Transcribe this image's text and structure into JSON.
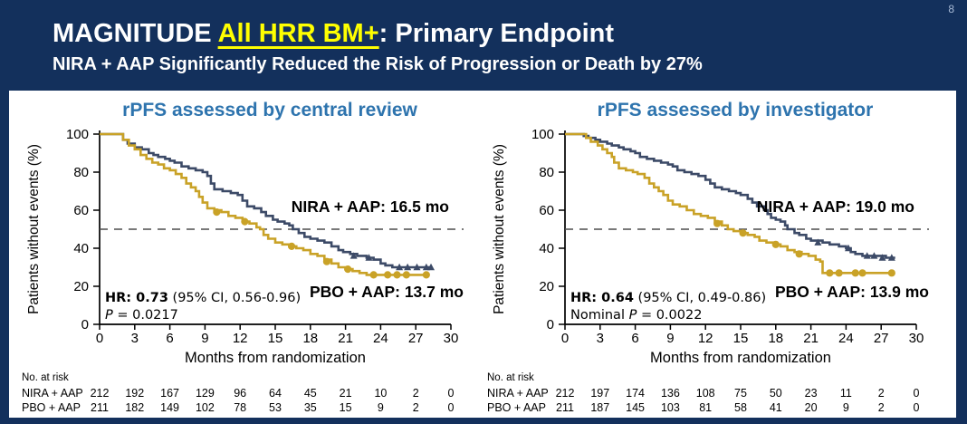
{
  "page_number": "8",
  "header": {
    "title_prefix": "MAGNITUDE ",
    "title_highlight": "All HRR BM+",
    "title_suffix": ": Primary Endpoint",
    "subtitle": "NIRA + AAP Significantly Reduced the Risk of Progression or Death by 27%"
  },
  "colors": {
    "background_navy": "#13305C",
    "heading_blue": "#2E74AE",
    "highlight_yellow": "#FFFF00",
    "nira_navy": "#3C4A67",
    "pbo_gold": "#C9A227",
    "dash_gray": "#4D4D4D"
  },
  "chart_data": [
    {
      "type": "line",
      "subtype": "kaplan-meier-step",
      "title": "rPFS assessed by central review",
      "xlabel": "Months from randomization",
      "ylabel": "Patients without events (%)",
      "xlim": [
        0,
        30
      ],
      "ylim": [
        0,
        100
      ],
      "x_ticks": [
        0,
        3,
        6,
        9,
        12,
        15,
        18,
        21,
        24,
        27,
        30
      ],
      "y_ticks": [
        0,
        20,
        40,
        60,
        80,
        100
      ],
      "reference_line_y": 50,
      "grid": false,
      "series": [
        {
          "name": "NIRA + AAP",
          "color": "#3C4A67",
          "median_months": 16.5,
          "label": "NIRA + AAP: 16.5 mo",
          "marker": "triangle",
          "points": [
            [
              0,
              100
            ],
            [
              1.6,
              100
            ],
            [
              2,
              97
            ],
            [
              2.4,
              95
            ],
            [
              3,
              93
            ],
            [
              3.6,
              92
            ],
            [
              4.2,
              90
            ],
            [
              4.6,
              89
            ],
            [
              5,
              88
            ],
            [
              5.6,
              87
            ],
            [
              6,
              86
            ],
            [
              6.4,
              85
            ],
            [
              7,
              83
            ],
            [
              7.6,
              82
            ],
            [
              8.2,
              81
            ],
            [
              8.8,
              80
            ],
            [
              9.2,
              78
            ],
            [
              9.5,
              74
            ],
            [
              9.8,
              71
            ],
            [
              10.5,
              70
            ],
            [
              11.2,
              69
            ],
            [
              11.8,
              68
            ],
            [
              12.2,
              65
            ],
            [
              12.6,
              62
            ],
            [
              13.2,
              61
            ],
            [
              13.8,
              59
            ],
            [
              14.2,
              57
            ],
            [
              14.8,
              55
            ],
            [
              15.2,
              54
            ],
            [
              15.8,
              53
            ],
            [
              16.2,
              52
            ],
            [
              16.5,
              50
            ],
            [
              17,
              48
            ],
            [
              17.5,
              46
            ],
            [
              18,
              45
            ],
            [
              18.6,
              44
            ],
            [
              19.2,
              43
            ],
            [
              19.8,
              41
            ],
            [
              20.4,
              39
            ],
            [
              20.8,
              38
            ],
            [
              21.4,
              37
            ],
            [
              22,
              36
            ],
            [
              22.8,
              35
            ],
            [
              23.4,
              34
            ],
            [
              24,
              32
            ],
            [
              24.4,
              31
            ],
            [
              25,
              30
            ],
            [
              28.4,
              30
            ]
          ],
          "censor_marks": [
            [
              21.7,
              36
            ],
            [
              23,
              35
            ],
            [
              25.6,
              30
            ],
            [
              26.3,
              30
            ],
            [
              27.1,
              30
            ],
            [
              27.9,
              30
            ],
            [
              28.3,
              30
            ]
          ]
        },
        {
          "name": "PBO + AAP",
          "color": "#C9A227",
          "median_months": 13.7,
          "label": "PBO + AAP: 13.7 mo",
          "marker": "circle",
          "points": [
            [
              0,
              100
            ],
            [
              1.6,
              100
            ],
            [
              2,
              97
            ],
            [
              2.5,
              94
            ],
            [
              3,
              92
            ],
            [
              3.5,
              89
            ],
            [
              4,
              87
            ],
            [
              4.5,
              85
            ],
            [
              5,
              84
            ],
            [
              5.5,
              82
            ],
            [
              6,
              81
            ],
            [
              6.5,
              79
            ],
            [
              7,
              77
            ],
            [
              7.4,
              74
            ],
            [
              7.8,
              72
            ],
            [
              8.2,
              70
            ],
            [
              8.5,
              67
            ],
            [
              8.8,
              64
            ],
            [
              9.2,
              61
            ],
            [
              9.8,
              60
            ],
            [
              10.4,
              59
            ],
            [
              11,
              57
            ],
            [
              11.6,
              56
            ],
            [
              12.2,
              54
            ],
            [
              12.8,
              53
            ],
            [
              13.4,
              51
            ],
            [
              13.7,
              50
            ],
            [
              14,
              47
            ],
            [
              14.4,
              45
            ],
            [
              15,
              43
            ],
            [
              15.6,
              42
            ],
            [
              16.2,
              41
            ],
            [
              16.8,
              40
            ],
            [
              17.4,
              39
            ],
            [
              18,
              37
            ],
            [
              18.6,
              36
            ],
            [
              19.2,
              34
            ],
            [
              19.8,
              32
            ],
            [
              20.4,
              30
            ],
            [
              21,
              29
            ],
            [
              21.6,
              28
            ],
            [
              22.2,
              27
            ],
            [
              22.8,
              26
            ],
            [
              28,
              26
            ]
          ],
          "censor_marks": [
            [
              10,
              59
            ],
            [
              12.4,
              54
            ],
            [
              16.4,
              41
            ],
            [
              19.4,
              33
            ],
            [
              21.2,
              29
            ],
            [
              23.4,
              26
            ],
            [
              24.6,
              26
            ],
            [
              25.4,
              26
            ],
            [
              26.2,
              26
            ],
            [
              27.9,
              26
            ]
          ]
        }
      ],
      "stats": {
        "hr": "HR: 0.73",
        "ci": " (95% CI, 0.56-0.96)",
        "p_prefix": "",
        "p_symbol": "P",
        "p_rest": " = 0.0217"
      },
      "at_risk": {
        "header": "No. at risk",
        "rows": [
          {
            "label": "NIRA + AAP",
            "values": [
              212,
              192,
              167,
              129,
              96,
              64,
              45,
              21,
              10,
              2,
              0
            ]
          },
          {
            "label": "PBO + AAP",
            "values": [
              211,
              182,
              149,
              102,
              78,
              53,
              35,
              15,
              9,
              2,
              0
            ]
          }
        ]
      }
    },
    {
      "type": "line",
      "subtype": "kaplan-meier-step",
      "title": "rPFS assessed by investigator",
      "xlabel": "Months from randomization",
      "ylabel": "Patients without events (%)",
      "xlim": [
        0,
        30
      ],
      "ylim": [
        0,
        100
      ],
      "x_ticks": [
        0,
        3,
        6,
        9,
        12,
        15,
        18,
        21,
        24,
        27,
        30
      ],
      "y_ticks": [
        0,
        20,
        40,
        60,
        80,
        100
      ],
      "reference_line_y": 50,
      "grid": false,
      "series": [
        {
          "name": "NIRA + AAP",
          "color": "#3C4A67",
          "median_months": 19.0,
          "label": "NIRA + AAP: 19.0 mo",
          "marker": "triangle",
          "points": [
            [
              0,
              100
            ],
            [
              1.2,
              100
            ],
            [
              1.6,
              99
            ],
            [
              2,
              98
            ],
            [
              2.6,
              97
            ],
            [
              3,
              96
            ],
            [
              3.6,
              95
            ],
            [
              4,
              94
            ],
            [
              4.6,
              93
            ],
            [
              5,
              92
            ],
            [
              5.6,
              91
            ],
            [
              6,
              90
            ],
            [
              6.4,
              88
            ],
            [
              7,
              87
            ],
            [
              7.6,
              86
            ],
            [
              8.2,
              85
            ],
            [
              8.8,
              84
            ],
            [
              9.2,
              83
            ],
            [
              9.6,
              81
            ],
            [
              10.2,
              80
            ],
            [
              10.8,
              79
            ],
            [
              11.4,
              78
            ],
            [
              12,
              76
            ],
            [
              12.4,
              74
            ],
            [
              12.8,
              72
            ],
            [
              13.4,
              71
            ],
            [
              14,
              70
            ],
            [
              14.6,
              69
            ],
            [
              15,
              68
            ],
            [
              15.6,
              66
            ],
            [
              16,
              64
            ],
            [
              16.4,
              62
            ],
            [
              17,
              60
            ],
            [
              17.3,
              58
            ],
            [
              17.6,
              56
            ],
            [
              18,
              55
            ],
            [
              18.4,
              54
            ],
            [
              18.8,
              52
            ],
            [
              19,
              50
            ],
            [
              19.6,
              48
            ],
            [
              20,
              47
            ],
            [
              20.6,
              45
            ],
            [
              21,
              44
            ],
            [
              22,
              43
            ],
            [
              22.6,
              42
            ],
            [
              23.4,
              41
            ],
            [
              24,
              40
            ],
            [
              24.4,
              38
            ],
            [
              24.8,
              37
            ],
            [
              25.4,
              36
            ],
            [
              27,
              36
            ],
            [
              27.4,
              35
            ],
            [
              28.2,
              35
            ]
          ],
          "censor_marks": [
            [
              21.6,
              43
            ],
            [
              24.2,
              40
            ],
            [
              25.8,
              36
            ],
            [
              26.4,
              36
            ],
            [
              27.1,
              35
            ],
            [
              27.9,
              35
            ]
          ]
        },
        {
          "name": "PBO + AAP",
          "color": "#C9A227",
          "median_months": 13.9,
          "label": "PBO + AAP: 13.9 mo",
          "marker": "circle",
          "points": [
            [
              0,
              100
            ],
            [
              1.4,
              100
            ],
            [
              1.8,
              98
            ],
            [
              2.2,
              96
            ],
            [
              2.8,
              94
            ],
            [
              3.2,
              92
            ],
            [
              3.6,
              90
            ],
            [
              4,
              88
            ],
            [
              4.2,
              85
            ],
            [
              4.6,
              82
            ],
            [
              5.2,
              81
            ],
            [
              5.8,
              80
            ],
            [
              6.2,
              79
            ],
            [
              6.8,
              77
            ],
            [
              7.2,
              74
            ],
            [
              7.6,
              72
            ],
            [
              8,
              70
            ],
            [
              8.4,
              68
            ],
            [
              8.8,
              65
            ],
            [
              9.2,
              63
            ],
            [
              9.8,
              62
            ],
            [
              10.4,
              60
            ],
            [
              11,
              58
            ],
            [
              11.6,
              57
            ],
            [
              12.2,
              56
            ],
            [
              12.8,
              54
            ],
            [
              13.4,
              52
            ],
            [
              13.9,
              50
            ],
            [
              14.4,
              49
            ],
            [
              15,
              48
            ],
            [
              15.6,
              47
            ],
            [
              16.2,
              46
            ],
            [
              16.6,
              44
            ],
            [
              17.2,
              43
            ],
            [
              17.8,
              42
            ],
            [
              18.4,
              41
            ],
            [
              19,
              39
            ],
            [
              19.6,
              38
            ],
            [
              20.2,
              37
            ],
            [
              20.8,
              36
            ],
            [
              21.4,
              34
            ],
            [
              21.8,
              33
            ],
            [
              22,
              27
            ],
            [
              28,
              27
            ]
          ],
          "censor_marks": [
            [
              13,
              53
            ],
            [
              15.2,
              48
            ],
            [
              18,
              42
            ],
            [
              20,
              37
            ],
            [
              22.6,
              27
            ],
            [
              23.4,
              27
            ],
            [
              24.8,
              27
            ],
            [
              25.4,
              27
            ],
            [
              27.9,
              27
            ]
          ]
        }
      ],
      "stats": {
        "hr": "HR: 0.64",
        "ci": " (95% CI, 0.49-0.86)",
        "p_prefix": "Nominal ",
        "p_symbol": "P",
        "p_rest": " = 0.0022"
      },
      "at_risk": {
        "header": "No. at risk",
        "rows": [
          {
            "label": "NIRA + AAP",
            "values": [
              212,
              197,
              174,
              136,
              108,
              75,
              50,
              23,
              11,
              2,
              0
            ]
          },
          {
            "label": "PBO + AAP",
            "values": [
              211,
              187,
              145,
              103,
              81,
              58,
              41,
              20,
              9,
              2,
              0
            ]
          }
        ]
      }
    }
  ]
}
